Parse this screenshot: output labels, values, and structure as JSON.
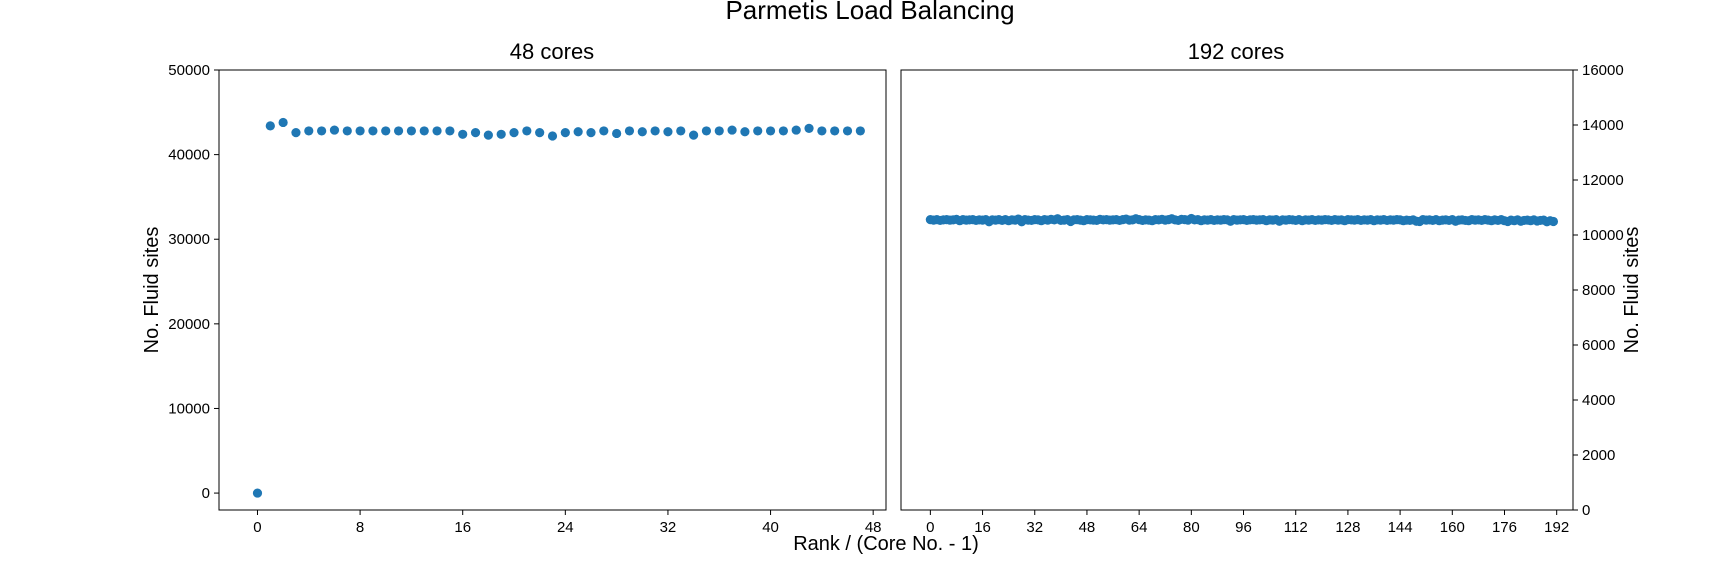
{
  "figure": {
    "title": "Parmetis Load Balancing",
    "xlabel": "Rank / (Core No. - 1)"
  },
  "chart_data": [
    {
      "type": "scatter",
      "title": "48 cores",
      "xlabel": "",
      "ylabel": "No. Fluid sites",
      "ylabel_side": "left",
      "xlim": [
        -3,
        49
      ],
      "ylim": [
        -2000,
        50000
      ],
      "xticks": [
        0,
        8,
        16,
        24,
        32,
        40,
        48
      ],
      "yticks": [
        0,
        10000,
        20000,
        30000,
        40000,
        50000
      ],
      "color": "#1f77b4",
      "grid": false,
      "series": [
        {
          "x": [
            0,
            1,
            2,
            3,
            4,
            5,
            6,
            7,
            8,
            9,
            10,
            11,
            12,
            13,
            14,
            15,
            16,
            17,
            18,
            19,
            20,
            21,
            22,
            23,
            24,
            25,
            26,
            27,
            28,
            29,
            30,
            31,
            32,
            33,
            34,
            35,
            36,
            37,
            38,
            39,
            40,
            41,
            42,
            43,
            44,
            45,
            46,
            47
          ],
          "y": [
            0,
            43400,
            43800,
            42600,
            42800,
            42800,
            42900,
            42800,
            42800,
            42800,
            42800,
            42800,
            42800,
            42800,
            42800,
            42800,
            42400,
            42600,
            42300,
            42400,
            42600,
            42800,
            42600,
            42200,
            42600,
            42700,
            42600,
            42800,
            42500,
            42800,
            42700,
            42800,
            42700,
            42800,
            42300,
            42800,
            42800,
            42900,
            42700,
            42800,
            42800,
            42800,
            42900,
            43100,
            42800,
            42800,
            42800,
            42800
          ]
        }
      ]
    },
    {
      "type": "scatter",
      "title": "192 cores",
      "xlabel": "",
      "ylabel": "No. Fluid sites",
      "ylabel_side": "right",
      "xlim": [
        -9,
        197
      ],
      "ylim": [
        0,
        16000
      ],
      "xticks": [
        0,
        16,
        32,
        48,
        64,
        80,
        96,
        112,
        128,
        144,
        160,
        176,
        192
      ],
      "yticks": [
        0,
        2000,
        4000,
        6000,
        8000,
        10000,
        12000,
        14000,
        16000
      ],
      "color": "#1f77b4",
      "grid": false,
      "series": [
        {
          "x_start": 0,
          "count": 192,
          "y": [
            10560,
            10540,
            10560,
            10530,
            10550,
            10560,
            10540,
            10550,
            10570,
            10520,
            10560,
            10540,
            10550,
            10560,
            10530,
            10550,
            10540,
            10560,
            10480,
            10550,
            10540,
            10560,
            10530,
            10560,
            10520,
            10550,
            10540,
            10580,
            10480,
            10560,
            10540,
            10530,
            10560,
            10550,
            10520,
            10560,
            10540,
            10570,
            10550,
            10590,
            10530,
            10540,
            10560,
            10490,
            10550,
            10560,
            10540,
            10520,
            10560,
            10550,
            10540,
            10530,
            10570,
            10550,
            10560,
            10540,
            10550,
            10560,
            10530,
            10560,
            10580,
            10540,
            10550,
            10590,
            10560,
            10530,
            10550,
            10540,
            10520,
            10560,
            10550,
            10570,
            10540,
            10560,
            10590,
            10550,
            10530,
            10570,
            10560,
            10540,
            10600,
            10550,
            10560,
            10520,
            10550,
            10540,
            10560,
            10530,
            10550,
            10540,
            10560,
            10550,
            10500,
            10560,
            10540,
            10550,
            10560,
            10530,
            10550,
            10560,
            10540,
            10550,
            10560,
            10520,
            10550,
            10540,
            10560,
            10500,
            10550,
            10540,
            10560,
            10550,
            10530,
            10560,
            10520,
            10550,
            10540,
            10560,
            10530,
            10550,
            10540,
            10560,
            10550,
            10530,
            10560,
            10540,
            10550,
            10520,
            10560,
            10550,
            10540,
            10560,
            10530,
            10550,
            10540,
            10560,
            10520,
            10550,
            10540,
            10560,
            10530,
            10550,
            10540,
            10560,
            10550,
            10520,
            10540,
            10530,
            10550,
            10500,
            10490,
            10560,
            10540,
            10550,
            10530,
            10560,
            10520,
            10540,
            10550,
            10530,
            10560,
            10500,
            10540,
            10550,
            10530,
            10520,
            10560,
            10540,
            10550,
            10530,
            10560,
            10540,
            10520,
            10550,
            10530,
            10560,
            10520,
            10490,
            10540,
            10520,
            10550,
            10500,
            10530,
            10540,
            10520,
            10550,
            10510,
            10530,
            10540,
            10480,
            10520,
            10490
          ]
        }
      ]
    }
  ]
}
